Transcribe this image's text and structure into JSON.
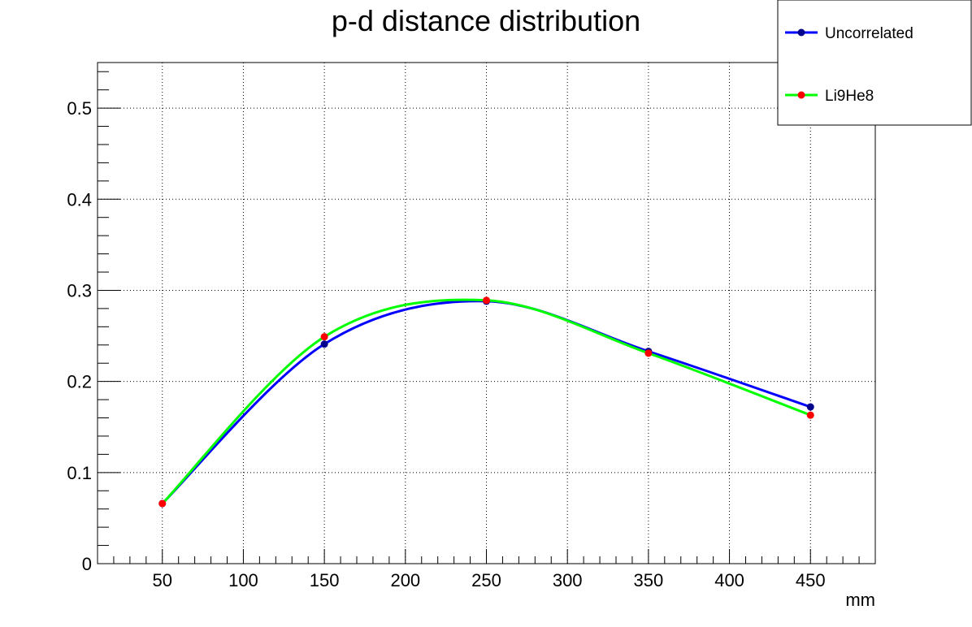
{
  "chart_data": {
    "type": "line",
    "title": "p-d distance distribution",
    "xlabel": "mm",
    "ylabel": "",
    "xlim": [
      10,
      490
    ],
    "ylim": [
      0,
      0.55
    ],
    "x_major_ticks": [
      50,
      100,
      150,
      200,
      250,
      300,
      350,
      400,
      450
    ],
    "y_major_ticks": [
      0,
      0.1,
      0.2,
      0.3,
      0.4,
      0.5
    ],
    "x_tick_labels": [
      "50",
      "100",
      "150",
      "200",
      "250",
      "300",
      "350",
      "400",
      "450"
    ],
    "y_tick_labels": [
      "0",
      "0.1",
      "0.2",
      "0.3",
      "0.4",
      "0.5"
    ],
    "grid": true,
    "legend_position": "top-right",
    "x": [
      50,
      150,
      250,
      350,
      450
    ],
    "series": [
      {
        "name": "Uncorrelated",
        "values": [
          0.066,
          0.241,
          0.288,
          0.233,
          0.172
        ],
        "line_color": "#0000ff",
        "marker_color": "#00008b"
      },
      {
        "name": "Li9He8",
        "values": [
          0.066,
          0.249,
          0.289,
          0.231,
          0.163
        ],
        "line_color": "#00ff00",
        "marker_color": "#ff0000"
      }
    ]
  }
}
